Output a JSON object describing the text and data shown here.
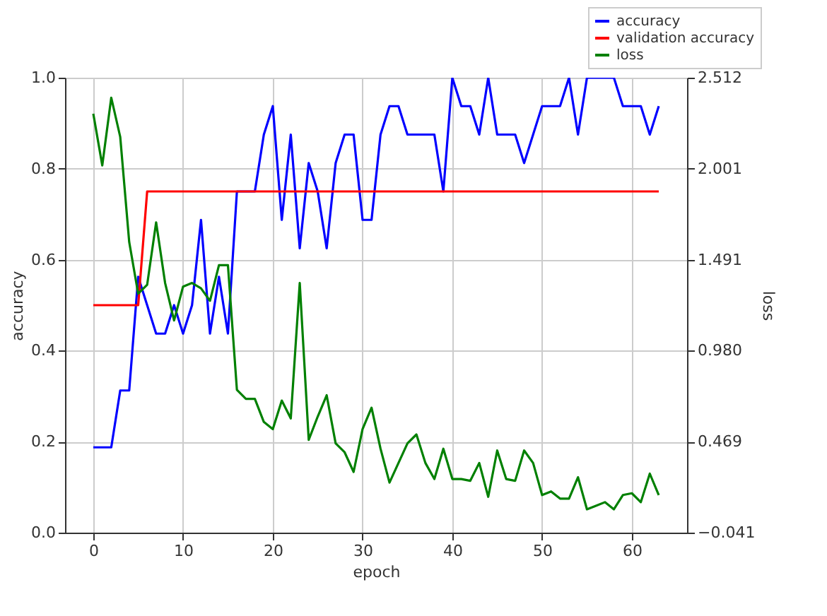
{
  "chart_data": {
    "type": "line",
    "xlabel": "epoch",
    "ylabel": "accuracy",
    "y2label": "loss",
    "x": [
      0,
      1,
      2,
      3,
      4,
      5,
      6,
      7,
      8,
      9,
      10,
      11,
      12,
      13,
      14,
      15,
      16,
      17,
      18,
      19,
      20,
      21,
      22,
      23,
      24,
      25,
      26,
      27,
      28,
      29,
      30,
      31,
      32,
      33,
      34,
      35,
      36,
      37,
      38,
      39,
      40,
      41,
      42,
      43,
      44,
      45,
      46,
      47,
      48,
      49,
      50,
      51,
      52,
      53,
      54,
      55,
      56,
      57,
      58,
      59,
      60,
      61,
      62,
      63
    ],
    "series": [
      {
        "name": "accuracy",
        "color": "#0000ff",
        "values": [
          0.1875,
          0.1875,
          0.1875,
          0.3125,
          0.3125,
          0.5625,
          0.5,
          0.4375,
          0.4375,
          0.5,
          0.4375,
          0.5,
          0.6875,
          0.4375,
          0.5625,
          0.4375,
          0.75,
          0.75,
          0.75,
          0.875,
          0.9375,
          0.6875,
          0.875,
          0.625,
          0.8125,
          0.75,
          0.625,
          0.8125,
          0.875,
          0.875,
          0.6875,
          0.6875,
          0.875,
          0.9375,
          0.9375,
          0.875,
          0.875,
          0.875,
          0.875,
          0.75,
          1.0,
          0.9375,
          0.9375,
          0.875,
          1.0,
          0.875,
          0.875,
          0.875,
          0.8125,
          0.875,
          0.9375,
          0.9375,
          0.9375,
          1.0,
          0.875,
          1.0,
          1.0,
          1.0,
          1.0,
          0.9375,
          0.9375,
          0.9375,
          0.875,
          0.9375
        ]
      },
      {
        "name": "validation accuracy",
        "color": "#ff0000",
        "values": [
          0.5,
          0.5,
          0.5,
          0.5,
          0.5,
          0.5,
          0.75,
          0.75,
          0.75,
          0.75,
          0.75,
          0.75,
          0.75,
          0.75,
          0.75,
          0.75,
          0.75,
          0.75,
          0.75,
          0.75,
          0.75,
          0.75,
          0.75,
          0.75,
          0.75,
          0.75,
          0.75,
          0.75,
          0.75,
          0.75,
          0.75,
          0.75,
          0.75,
          0.75,
          0.75,
          0.75,
          0.75,
          0.75,
          0.75,
          0.75,
          0.75,
          0.75,
          0.75,
          0.75,
          0.75,
          0.75,
          0.75,
          0.75,
          0.75,
          0.75,
          0.75,
          0.75,
          0.75,
          0.75,
          0.75,
          0.75,
          0.75,
          0.75,
          0.75,
          0.75,
          0.75,
          0.75,
          0.75,
          0.75
        ]
      },
      {
        "name": "loss",
        "color": "#008000",
        "axis": "y2",
        "values": [
          2.31,
          2.02,
          2.4,
          2.18,
          1.59,
          1.3,
          1.35,
          1.7,
          1.36,
          1.15,
          1.34,
          1.36,
          1.33,
          1.26,
          1.46,
          1.46,
          0.76,
          0.71,
          0.71,
          0.58,
          0.54,
          0.7,
          0.6,
          1.36,
          0.48,
          0.61,
          0.73,
          0.46,
          0.41,
          0.3,
          0.54,
          0.66,
          0.43,
          0.24,
          0.35,
          0.46,
          0.51,
          0.35,
          0.26,
          0.43,
          0.26,
          0.26,
          0.25,
          0.35,
          0.16,
          0.42,
          0.26,
          0.25,
          0.42,
          0.35,
          0.17,
          0.19,
          0.15,
          0.15,
          0.27,
          0.09,
          0.11,
          0.13,
          0.09,
          0.17,
          0.18,
          0.13,
          0.29,
          0.17
        ]
      }
    ],
    "xlim": [
      -3.15,
      66.15
    ],
    "xticks": [
      0,
      10,
      20,
      30,
      40,
      50,
      60
    ],
    "ylim": [
      0,
      1
    ],
    "yticks": [
      {
        "value": 0,
        "label": "0.0"
      },
      {
        "value": 0.2,
        "label": "0.2"
      },
      {
        "value": 0.4,
        "label": "0.4"
      },
      {
        "value": 0.6,
        "label": "0.6"
      },
      {
        "value": 0.8,
        "label": "0.8"
      },
      {
        "value": 1,
        "label": "1.0"
      }
    ],
    "y2lim": [
      -0.041,
      2.512
    ],
    "y2ticks": [
      {
        "value": -0.041,
        "label": "−0.041"
      },
      0.469,
      {
        "value": 0.98,
        "label": "0.980"
      },
      1.491,
      2.001,
      2.512
    ],
    "grid": true,
    "legend": "top right"
  }
}
